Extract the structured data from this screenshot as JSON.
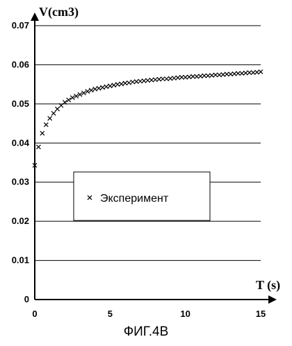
{
  "caption": "ФИГ.4В",
  "chart_data": {
    "type": "scatter",
    "ylabel": "V(cm3)",
    "xlabel": "T (s)",
    "xlim": [
      0,
      15
    ],
    "ylim": [
      0,
      0.07
    ],
    "xticks": [
      "0",
      "5",
      "10",
      "15"
    ],
    "yticks": [
      "0",
      "0.01",
      "0.02",
      "0.03",
      "0.04",
      "0.05",
      "0.06",
      "0.07"
    ],
    "grid": "horizontal",
    "legend_position": "center",
    "series": [
      {
        "name": "Эксперимент",
        "marker": "x",
        "x": [
          0.0,
          0.25,
          0.5,
          0.75,
          1.0,
          1.25,
          1.5,
          1.75,
          2.0,
          2.25,
          2.5,
          2.75,
          3.0,
          3.25,
          3.5,
          3.75,
          4.0,
          4.25,
          4.5,
          4.75,
          5.0,
          5.25,
          5.5,
          5.75,
          6.0,
          6.25,
          6.5,
          6.75,
          7.0,
          7.25,
          7.5,
          7.75,
          8.0,
          8.25,
          8.5,
          8.75,
          9.0,
          9.25,
          9.5,
          9.75,
          10.0,
          10.25,
          10.5,
          10.75,
          11.0,
          11.25,
          11.5,
          11.75,
          12.0,
          12.25,
          12.5,
          12.75,
          13.0,
          13.25,
          13.5,
          13.75,
          14.0,
          14.25,
          14.5,
          14.75,
          15.0
        ],
        "y": [
          0.0343,
          0.039,
          0.0425,
          0.0447,
          0.0463,
          0.0476,
          0.0487,
          0.0496,
          0.0504,
          0.051,
          0.0516,
          0.052,
          0.0524,
          0.0528,
          0.0532,
          0.0535,
          0.0538,
          0.054,
          0.0542,
          0.0544,
          0.0546,
          0.0548,
          0.055,
          0.0551,
          0.0553,
          0.0554,
          0.0556,
          0.0557,
          0.0558,
          0.0559,
          0.056,
          0.0561,
          0.0562,
          0.0563,
          0.0564,
          0.0564,
          0.0565,
          0.0566,
          0.0567,
          0.0568,
          0.0568,
          0.0569,
          0.057,
          0.057,
          0.0571,
          0.0572,
          0.0572,
          0.0573,
          0.0574,
          0.0574,
          0.0575,
          0.0576,
          0.0576,
          0.0577,
          0.0578,
          0.0578,
          0.0579,
          0.058,
          0.058,
          0.0581,
          0.0582
        ]
      }
    ]
  }
}
